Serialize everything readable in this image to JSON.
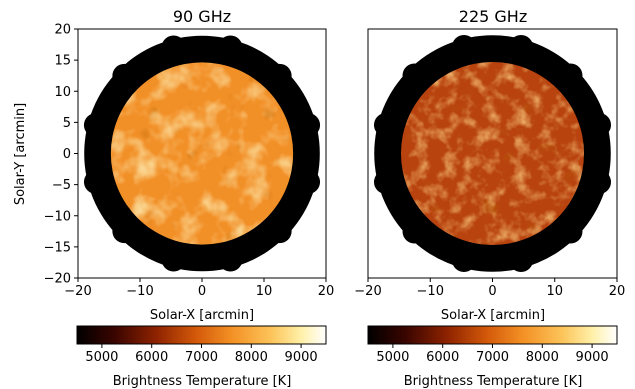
{
  "chart_data": [
    {
      "type": "heatmap",
      "title": "90 GHz",
      "xlabel": "Solar-X [arcmin]",
      "ylabel": "Solar-Y [arcmin]",
      "xlim": [
        -20,
        20
      ],
      "ylim": [
        -20,
        20
      ],
      "xticks": [
        -20,
        -10,
        0,
        10,
        20
      ],
      "yticks": [
        -20,
        -15,
        -10,
        -5,
        0,
        5,
        10,
        15,
        20
      ],
      "colormap": "afmhot",
      "disk_radius_arcmin": 14.7,
      "outer_ring_radius_arcmin": 19,
      "colorbar": {
        "label": "Brightness Temperature [K]",
        "range": [
          4500,
          9500
        ],
        "ticks": [
          5000,
          6000,
          7000,
          8000,
          9000
        ]
      },
      "disk_color": "#f29028"
    },
    {
      "type": "heatmap",
      "title": "225 GHz",
      "xlabel": "Solar-X [arcmin]",
      "ylabel": "",
      "xlim": [
        -20,
        20
      ],
      "ylim": [
        -20,
        20
      ],
      "xticks": [
        -20,
        -10,
        0,
        10,
        20
      ],
      "yticks": [],
      "colormap": "afmhot",
      "disk_radius_arcmin": 14.7,
      "outer_ring_radius_arcmin": 19,
      "colorbar": {
        "label": "Brightness Temperature [K]",
        "range": [
          4500,
          9500
        ],
        "ticks": [
          5000,
          6000,
          7000,
          8000,
          9000
        ]
      },
      "disk_color": "#b8430f"
    }
  ]
}
